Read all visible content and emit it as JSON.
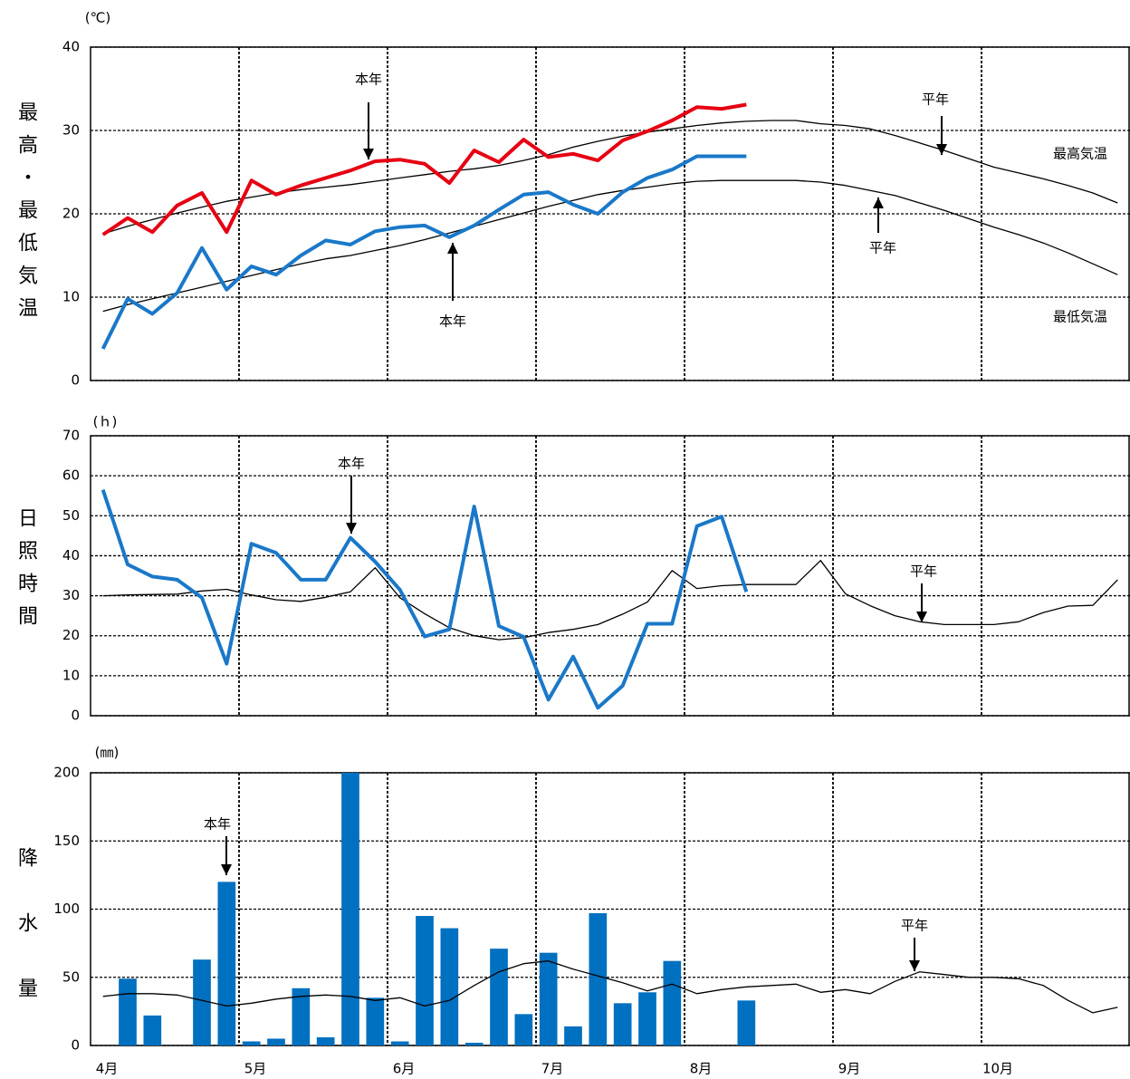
{
  "chart_data": [
    {
      "type": "line",
      "y_unit": "(℃)",
      "y_title": "最高・最低気温",
      "ylim": [
        0,
        40
      ],
      "yticks": [
        0,
        10,
        20,
        30,
        40
      ],
      "grid": true,
      "annotations": [
        "本年",
        "平年",
        "最高気温",
        "平年",
        "本年",
        "最低気温"
      ],
      "series": [
        {
          "name": "平年",
          "color": "#000000",
          "values": [
            17.6,
            18.5,
            19.3,
            20.1,
            20.8,
            21.5,
            22.0,
            22.5,
            22.9,
            23.2,
            23.5,
            23.9,
            24.3,
            24.7,
            25.1,
            25.4,
            25.8,
            26.4,
            27.1,
            28.0,
            28.7,
            29.3,
            29.8,
            30.2,
            30.6,
            30.9,
            31.1,
            31.2,
            31.2,
            30.8,
            30.6,
            30.2,
            29.4,
            28.5,
            27.6,
            26.6,
            25.6,
            24.9,
            24.2,
            23.4,
            22.5,
            21.3
          ]
        },
        {
          "name": "平年",
          "color": "#000000",
          "values": [
            8.3,
            9.1,
            9.8,
            10.5,
            11.2,
            11.9,
            12.6,
            13.3,
            14.0,
            14.6,
            15.0,
            15.6,
            16.2,
            16.9,
            17.7,
            18.5,
            19.3,
            20.1,
            20.9,
            21.6,
            22.3,
            22.8,
            23.2,
            23.6,
            23.9,
            24.0,
            24.0,
            24.0,
            24.0,
            23.8,
            23.4,
            22.8,
            22.2,
            21.3,
            20.4,
            19.4,
            18.4,
            17.5,
            16.5,
            15.3,
            14.0,
            12.7
          ]
        },
        {
          "name": "本年",
          "color": "#e60012",
          "values": [
            17.5,
            19.5,
            17.8,
            21.0,
            22.5,
            17.8,
            24.0,
            22.3,
            23.4,
            24.3,
            25.2,
            26.3,
            26.5,
            26.0,
            23.7,
            27.6,
            26.2,
            28.9,
            26.8,
            27.2,
            26.4,
            28.8,
            29.9,
            31.2,
            32.8,
            32.6,
            33.1
          ]
        },
        {
          "name": "本年",
          "color": "#1a78c8",
          "values": [
            3.8,
            9.8,
            8.0,
            10.5,
            15.9,
            10.9,
            13.7,
            12.7,
            15.0,
            16.8,
            16.3,
            17.9,
            18.4,
            18.6,
            17.2,
            18.6,
            20.5,
            22.3,
            22.6,
            21.1,
            20.0,
            22.6,
            24.3,
            25.3,
            26.9,
            26.9,
            26.9
          ]
        }
      ]
    },
    {
      "type": "line",
      "y_unit": "(ｈ)",
      "y_title": "日照時間",
      "ylim": [
        0,
        70
      ],
      "yticks": [
        0,
        10,
        20,
        30,
        40,
        50,
        60,
        70
      ],
      "grid": true,
      "annotations": [
        "本年",
        "平年"
      ],
      "series": [
        {
          "name": "平年",
          "color": "#000000",
          "values": [
            30,
            30.2,
            30.3,
            30.4,
            31.2,
            31.6,
            30.2,
            29,
            28.6,
            29.6,
            31,
            37,
            29.5,
            25.5,
            22,
            20,
            19,
            19.5,
            20.8,
            21.6,
            22.8,
            25.4,
            28.4,
            36.3,
            31.8,
            32.5,
            32.8,
            32.8,
            32.8,
            38.8,
            30.5,
            27.5,
            25,
            23.5,
            22.8,
            22.8,
            22.8,
            23.5,
            25.8,
            27.4,
            27.6,
            34
          ]
        },
        {
          "name": "本年",
          "color": "#1a78c8",
          "values": [
            56.5,
            37.8,
            34.8,
            34,
            29.5,
            13,
            43,
            40.7,
            34,
            34,
            44.5,
            38.5,
            31.5,
            19.8,
            21.6,
            52.3,
            22.4,
            19.7,
            4,
            14.8,
            2,
            7.5,
            23,
            23,
            47.4,
            49.8,
            31
          ]
        }
      ]
    },
    {
      "type": "bar",
      "y_unit": "(㎜)",
      "y_title": "降水量",
      "ylim": [
        0,
        200
      ],
      "yticks": [
        0,
        50,
        100,
        150,
        200
      ],
      "grid": true,
      "xlim": [
        0,
        42
      ],
      "xticks": [
        {
          "value": 0,
          "label": "4月"
        },
        {
          "value": 6,
          "label": "5月"
        },
        {
          "value": 12,
          "label": "6月"
        },
        {
          "value": 18,
          "label": "7月"
        },
        {
          "value": 24,
          "label": "8月"
        },
        {
          "value": 30,
          "label": "9月"
        },
        {
          "value": 36,
          "label": "10月"
        }
      ],
      "annotations": [
        "本年",
        "平年"
      ],
      "series": [
        {
          "name": "本年",
          "type": "bar",
          "color": "#0070c0",
          "values": [
            0,
            49,
            22,
            0,
            63,
            120,
            3,
            5,
            42,
            6,
            200,
            35,
            3,
            95,
            86,
            2,
            71,
            23,
            68,
            14,
            97,
            31,
            39,
            62,
            0,
            0,
            33
          ]
        },
        {
          "name": "平年",
          "type": "line",
          "color": "#000000",
          "values": [
            36,
            38,
            38,
            37,
            33,
            29,
            31,
            34,
            36,
            37,
            36,
            33,
            35,
            29,
            33,
            44,
            54,
            60,
            62,
            56,
            51,
            46,
            40,
            45,
            38,
            41,
            43,
            44,
            45,
            39,
            41,
            38,
            47,
            54,
            52,
            50,
            50,
            49,
            44,
            33,
            24,
            28
          ]
        }
      ]
    }
  ]
}
